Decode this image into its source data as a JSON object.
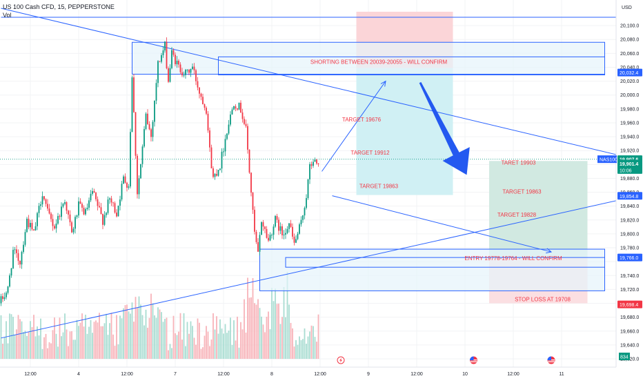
{
  "header": {
    "symbol_line": "US 100 Cash CFD, 15, PEPPERSTONE",
    "volume_label": "Vol"
  },
  "colors": {
    "up_candle": "#089981",
    "down_candle": "#f23645",
    "drawing_blue": "#2962ff",
    "annotation_red": "#f23645",
    "short_target_zone": "#cdeff3",
    "short_stop_zone": "#fbd3d6",
    "long_target_zone": "#cfe8df",
    "long_stop_zone": "#fbdde0"
  },
  "chart_data": {
    "type": "candlestick",
    "symbol": "NAS100",
    "timeframe": "15",
    "y_axis_unit": "USD",
    "ylim": [
      19620,
      20120
    ],
    "y_ticks": [
      20100,
      20080,
      20060,
      20040,
      20020,
      20000,
      19980,
      19960,
      19940,
      19920,
      19900,
      19880,
      19860,
      19840,
      19820,
      19800,
      19780,
      19760,
      19740,
      19720,
      19700,
      19680,
      19660,
      19640,
      19620
    ],
    "y_tick_labels": [
      "20,100.0",
      "20,080.0",
      "20,060.0",
      "20,040.0",
      "20,020.0",
      "20,000.0",
      "19,980.0",
      "19,960.0",
      "19,940.0",
      "19,920.0",
      "",
      "19,880.0",
      "19,860.0",
      "19,840.0",
      "19,820.0",
      "19,800.0",
      "19,780.0",
      "",
      "19,740.0",
      "19,720.0",
      "",
      "19,680.0",
      "19,660.0",
      "19,640.0",
      "19,620.0"
    ],
    "x_tick_labels": [
      "12:00",
      "4",
      "12:00",
      "7",
      "12:00",
      "8",
      "12:00",
      "9",
      "12:00",
      "10",
      "12:00",
      "11"
    ],
    "x_tick_slots": [
      17,
      45,
      73,
      101,
      129,
      157,
      185,
      213,
      241,
      269,
      297,
      325
    ],
    "candle_path": [
      [
        0,
        19700
      ],
      [
        5,
        19720
      ],
      [
        8,
        19775
      ],
      [
        12,
        19760
      ],
      [
        16,
        19820
      ],
      [
        20,
        19800
      ],
      [
        25,
        19860
      ],
      [
        28,
        19830
      ],
      [
        32,
        19810
      ],
      [
        38,
        19850
      ],
      [
        42,
        19800
      ],
      [
        46,
        19840
      ],
      [
        50,
        19830
      ],
      [
        54,
        19860
      ],
      [
        60,
        19820
      ],
      [
        64,
        19850
      ],
      [
        68,
        19830
      ],
      [
        72,
        19880
      ],
      [
        75,
        19870
      ],
      [
        77,
        20030
      ],
      [
        80,
        19860
      ],
      [
        82,
        19900
      ],
      [
        85,
        19970
      ],
      [
        88,
        19940
      ],
      [
        92,
        20045
      ],
      [
        96,
        20070
      ],
      [
        98,
        20020
      ],
      [
        100,
        20060
      ],
      [
        104,
        20040
      ],
      [
        108,
        20030
      ],
      [
        112,
        20040
      ],
      [
        116,
        20005
      ],
      [
        120,
        19980
      ],
      [
        122,
        19920
      ],
      [
        124,
        19880
      ],
      [
        128,
        19900
      ],
      [
        132,
        19950
      ],
      [
        136,
        19990
      ],
      [
        140,
        19980
      ],
      [
        143,
        19950
      ],
      [
        146,
        19860
      ],
      [
        148,
        19800
      ],
      [
        150,
        19770
      ],
      [
        152,
        19820
      ],
      [
        156,
        19790
      ],
      [
        160,
        19820
      ],
      [
        164,
        19800
      ],
      [
        168,
        19815
      ],
      [
        171,
        19785
      ],
      [
        175,
        19815
      ],
      [
        178,
        19855
      ],
      [
        180,
        19895
      ],
      [
        182,
        19905
      ],
      [
        184,
        19901.4
      ]
    ],
    "last_candle_slot": 184,
    "volume_max_label": "834",
    "price_labels": [
      {
        "text": "20,032.4",
        "value": 20032.4,
        "color": "#2962ff",
        "bold": false
      },
      {
        "text": "19,907.6",
        "value": 19907.6,
        "color": "#089981",
        "bold": true
      },
      {
        "text": "19,901.4",
        "value": 19901.4,
        "color": "#089981",
        "bold": true
      },
      {
        "text": "10:06",
        "value": 19892,
        "color": "#089981",
        "bold": false
      },
      {
        "text": "19,854.8",
        "value": 19854.8,
        "color": "#2962ff",
        "bold": false
      },
      {
        "text": "19,766.0",
        "value": 19766.0,
        "color": "#2962ff",
        "bold": false
      },
      {
        "text": "19,698.4",
        "value": 19698.4,
        "color": "#f23645",
        "bold": false
      }
    ],
    "symbol_tag": "NAS100",
    "currency": "USD",
    "zones": [
      {
        "name": "supply-zone",
        "from_slot": 76,
        "to_slot": 350,
        "top": 20076,
        "bottom": 20030,
        "fill": "#e6f4fb"
      },
      {
        "name": "supply-inner",
        "from_slot": 126,
        "to_slot": 350,
        "top": 20055,
        "bottom": 20029,
        "fill": "none"
      },
      {
        "name": "demand-zone",
        "from_slot": 150,
        "to_slot": 350,
        "top": 19778,
        "bottom": 19718,
        "fill": "#e6f4fb"
      },
      {
        "name": "demand-inner",
        "from_slot": 165,
        "to_slot": 350,
        "top": 19766,
        "bottom": 19752,
        "fill": "none"
      }
    ],
    "positions": [
      {
        "name": "short-stop-zone",
        "from_slot": 206,
        "to_slot": 262,
        "top": 20120,
        "bottom": 20039,
        "fill": "#fbd3d6"
      },
      {
        "name": "short-target-zone",
        "from_slot": 206,
        "to_slot": 262,
        "top": 20039,
        "bottom": 19856,
        "fill": "#cdeff3"
      },
      {
        "name": "long-target-zone",
        "from_slot": 283,
        "to_slot": 340,
        "top": 19905,
        "bottom": 19766,
        "fill": "#cfe8df"
      },
      {
        "name": "long-stop-zone",
        "from_slot": 283,
        "to_slot": 340,
        "top": 19766,
        "bottom": 19700,
        "fill": "#fbdde0"
      }
    ],
    "trend_lines": [
      {
        "name": "upper-trendline",
        "from": [
          0,
          20125
        ],
        "to": [
          357,
          19914
        ]
      },
      {
        "name": "lower-trendline",
        "from": [
          0,
          19650
        ],
        "to": [
          357,
          19848
        ]
      },
      {
        "name": "top-horizontal-line",
        "from": [
          0,
          20112
        ],
        "to": [
          357,
          20112
        ]
      }
    ],
    "arrows": [
      {
        "name": "up-projection-arrow",
        "from": [
          186,
          19890
        ],
        "to": [
          223,
          20020
        ],
        "style": "thin"
      },
      {
        "name": "down-projection-arrow",
        "from": [
          192,
          19855
        ],
        "to": [
          319,
          19774
        ],
        "style": "thin"
      },
      {
        "name": "big-down-arrow",
        "from": [
          243,
          20018
        ],
        "to": [
          270,
          19885
        ],
        "style": "thick"
      }
    ],
    "annotations": [
      {
        "text": "SHORTING BETWEEN 20039-20055 - WILL CONFIRM",
        "slot": 219,
        "value": 20045
      },
      {
        "text": "TARGET 19676",
        "slot": 209,
        "value": 19962
      },
      {
        "text": "TARGET 19912",
        "slot": 214,
        "value": 19914
      },
      {
        "text": "TARGET 19863",
        "slot": 219,
        "value": 19866
      },
      {
        "text": "TARET 19903",
        "slot": 300,
        "value": 19900
      },
      {
        "text": "TARGET 19863",
        "slot": 302,
        "value": 19858
      },
      {
        "text": "TARGET 19828",
        "slot": 299,
        "value": 19825
      },
      {
        "text": "ENTRY 19778-19764 - WILL CONFIRM",
        "slot": 297,
        "value": 19762
      },
      {
        "text": "STOP LOSS AT 19708",
        "slot": 314,
        "value": 19703
      }
    ],
    "event_markers": [
      {
        "kind": "lightning",
        "slot": 197
      },
      {
        "kind": "us-flag",
        "slot": 274
      },
      {
        "kind": "us-flag",
        "slot": 319
      }
    ]
  }
}
